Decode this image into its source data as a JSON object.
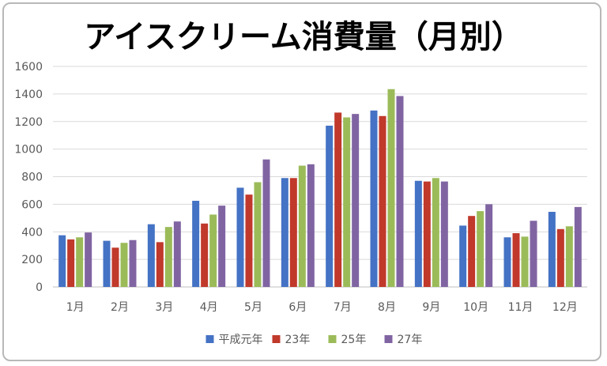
{
  "chart_data": {
    "type": "bar",
    "title": "アイスクリーム消費量（月別）",
    "xlabel": "",
    "ylabel": "",
    "ylim": [
      0,
      1600
    ],
    "yticks": [
      0,
      200,
      400,
      600,
      800,
      1000,
      1200,
      1400,
      1600
    ],
    "grid": true,
    "legend_position": "bottom",
    "categories": [
      "1月",
      "2月",
      "3月",
      "4月",
      "5月",
      "6月",
      "7月",
      "8月",
      "9月",
      "10月",
      "11月",
      "12月"
    ],
    "series": [
      {
        "name": "平成元年",
        "color": "#4472c4",
        "values": [
          375,
          335,
          455,
          625,
          720,
          790,
          1170,
          1280,
          770,
          445,
          360,
          545
        ]
      },
      {
        "name": "23年",
        "color": "#c0392b",
        "values": [
          345,
          285,
          325,
          460,
          670,
          790,
          1265,
          1240,
          765,
          515,
          390,
          420
        ]
      },
      {
        "name": "25年",
        "color": "#9bbb59",
        "values": [
          360,
          320,
          435,
          525,
          760,
          880,
          1230,
          1435,
          790,
          550,
          365,
          440
        ]
      },
      {
        "name": "27年",
        "color": "#8064a2",
        "values": [
          395,
          340,
          475,
          590,
          925,
          890,
          1255,
          1385,
          765,
          600,
          480,
          580
        ]
      }
    ]
  }
}
